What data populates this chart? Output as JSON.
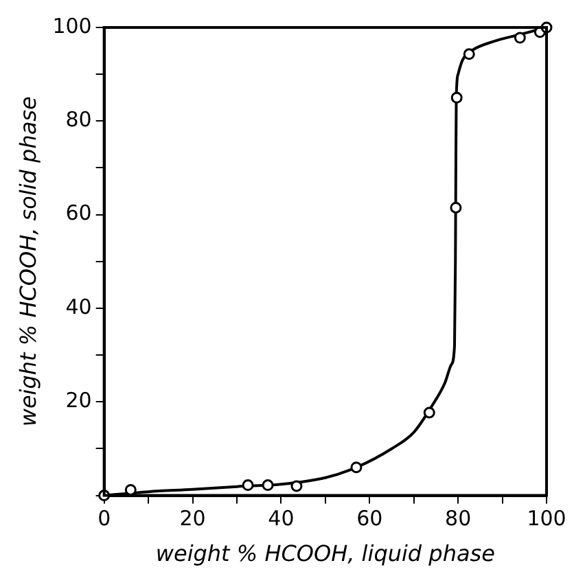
{
  "chart_data": {
    "type": "scatter",
    "xlabel": "weight % HCOOH, liquid phase",
    "ylabel": "weight % HCOOH, solid phase",
    "xlim": [
      0,
      100
    ],
    "ylim": [
      0,
      100
    ],
    "xticks": [
      0,
      {
        "value": 10,
        "label": null
      },
      20,
      {
        "value": 30,
        "label": null
      },
      40,
      {
        "value": 50,
        "label": null
      },
      60,
      {
        "value": 70,
        "label": null
      },
      80,
      {
        "value": 90,
        "label": null
      },
      100
    ],
    "yticks": [
      {
        "value": 0,
        "label": null
      },
      {
        "value": 10,
        "label": null
      },
      20,
      {
        "value": 30,
        "label": null
      },
      40,
      {
        "value": 50,
        "label": null
      },
      60,
      {
        "value": 70,
        "label": null
      },
      80,
      {
        "value": 90,
        "label": null
      },
      100
    ],
    "grid": false,
    "legend": false,
    "marker": "circle",
    "series": [
      {
        "type": "line",
        "color": "#000000",
        "marker": "none",
        "line_style": "solid",
        "x": [
          0,
          10,
          20,
          30,
          40,
          50,
          57,
          65,
          70,
          74,
          77,
          78.5,
          79.2,
          79.4,
          79.5,
          79.6,
          80,
          81,
          83,
          88,
          94,
          100
        ],
        "values": [
          0,
          0.8,
          1.3,
          1.9,
          2.4,
          3.8,
          6,
          10,
          13.5,
          19,
          24,
          28,
          32,
          50,
          70,
          85,
          90,
          93,
          95,
          97,
          98.5,
          100
        ]
      },
      {
        "color": "#000000",
        "x": [
          0,
          6,
          32.5,
          37,
          43.5,
          57,
          73.5,
          79.5,
          79.7,
          82.5,
          94,
          98.5,
          100
        ],
        "values": [
          0,
          1.2,
          2.2,
          2.2,
          2,
          6,
          17.7,
          61.5,
          85,
          94.3,
          97.8,
          99,
          100
        ]
      }
    ]
  }
}
